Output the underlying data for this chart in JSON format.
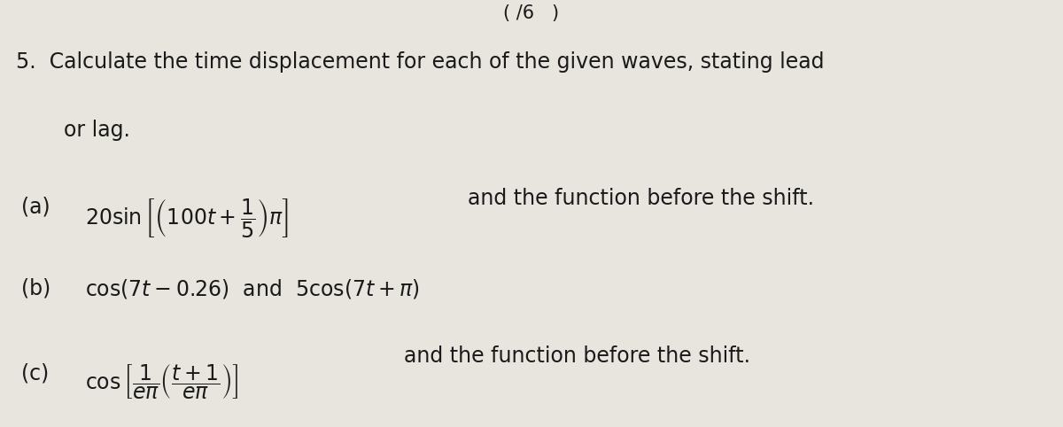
{
  "background_color": "#e8e4de",
  "text_color": "#1a1a1a",
  "fig_width": 12.0,
  "fig_height": 4.82,
  "header_text": "( /6   )",
  "q_num": "5.",
  "q_line1": "Calculate the time displacement for each of the given waves, stating lead",
  "q_line2": "or lag.",
  "a_label": "(a)",
  "a_math": "$20\\sin\\left[\\left(100t+\\dfrac{1}{5}\\right)\\pi\\right]$",
  "a_suffix": "and the function before the shift.",
  "b_label": "(b)",
  "b_math": "$\\cos(7t - 0.26)$  and  $5\\cos(7t + \\pi)$",
  "c_label": "(c)",
  "c_math": "$\\cos\\left[\\dfrac{1}{e\\pi}\\left(\\dfrac{t+1}{e\\pi}\\right)\\right]$",
  "c_suffix": "and the function before the shift.",
  "fs_main": 17,
  "fs_math": 17,
  "fs_header": 15
}
